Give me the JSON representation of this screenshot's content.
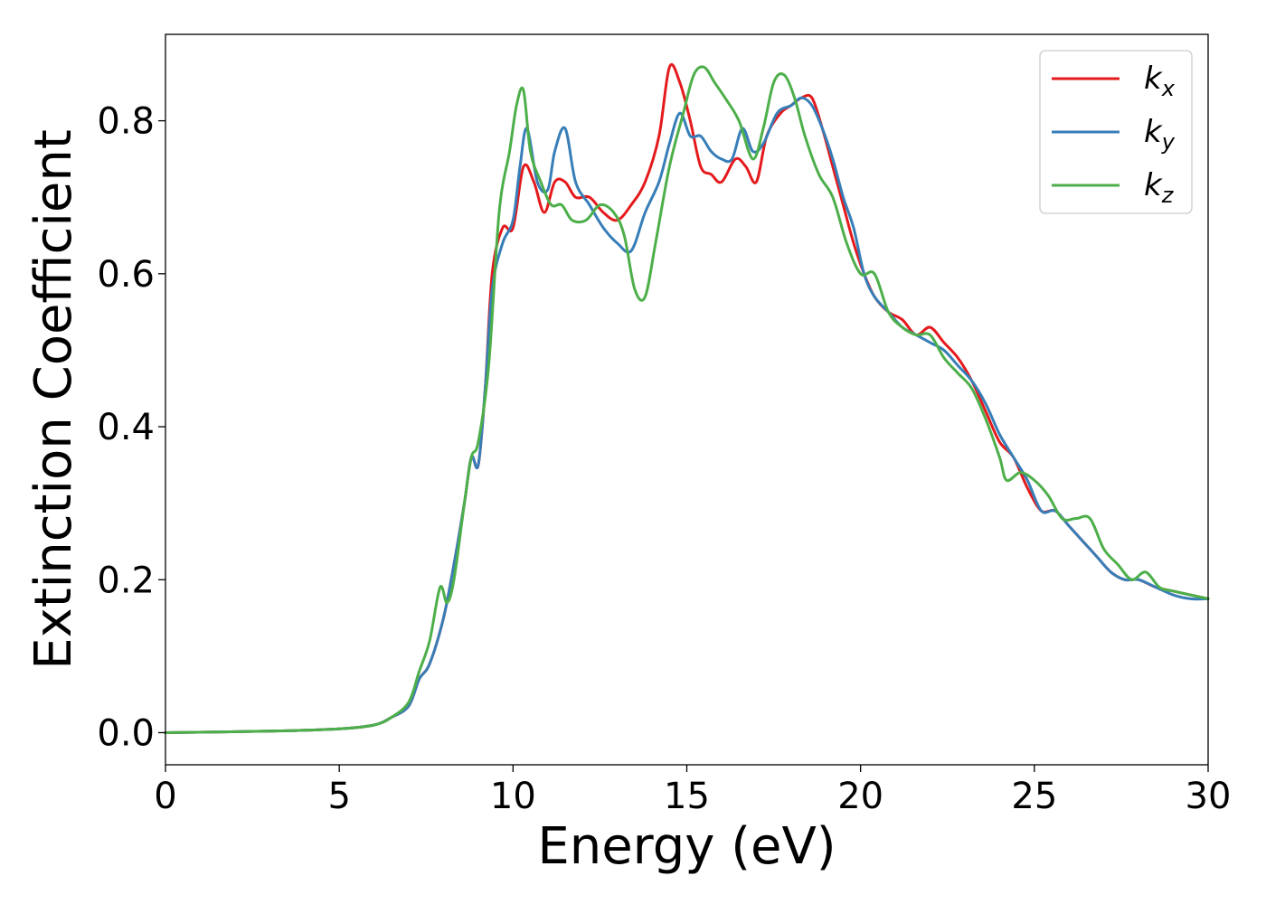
{
  "chart_data": {
    "type": "line",
    "title": "",
    "xlabel": "Energy (eV)",
    "ylabel": "Extinction Coefficient",
    "xlim": [
      0,
      30
    ],
    "ylim": [
      -0.042,
      0.913
    ],
    "xticks": [
      0,
      5,
      10,
      15,
      20,
      25,
      30
    ],
    "yticks": [
      0.0,
      0.2,
      0.4,
      0.6,
      0.8
    ],
    "xtick_labels": [
      "0",
      "5",
      "10",
      "15",
      "20",
      "25",
      "30"
    ],
    "ytick_labels": [
      "0.0",
      "0.2",
      "0.4",
      "0.6",
      "0.8"
    ],
    "grid": false,
    "legend_position": "top-right",
    "series": [
      {
        "name": "k_x",
        "label_base": "k",
        "label_sub": "x",
        "color": "#e41a1c",
        "x": [
          0,
          3,
          5,
          6,
          6.5,
          7,
          7.3,
          7.6,
          8.0,
          8.3,
          8.6,
          8.8,
          9.0,
          9.2,
          9.4,
          9.7,
          10.0,
          10.3,
          10.6,
          10.9,
          11.2,
          11.5,
          11.8,
          12.2,
          12.6,
          13.0,
          13.4,
          13.8,
          14.2,
          14.5,
          14.8,
          15.1,
          15.4,
          15.7,
          16.0,
          16.4,
          16.7,
          17.0,
          17.3,
          17.7,
          18.0,
          18.3,
          18.6,
          18.9,
          19.2,
          19.5,
          19.8,
          20.1,
          20.4,
          20.8,
          21.2,
          21.6,
          22.0,
          22.4,
          22.8,
          23.2,
          23.6,
          24.0,
          24.4,
          24.8,
          25.2,
          25.6,
          26.0,
          26.4,
          26.8,
          27.2,
          27.6,
          28.0,
          28.5,
          29.0,
          29.5,
          30.0
        ],
        "y": [
          0.0,
          0.002,
          0.005,
          0.01,
          0.02,
          0.035,
          0.07,
          0.09,
          0.15,
          0.22,
          0.3,
          0.36,
          0.35,
          0.45,
          0.6,
          0.66,
          0.66,
          0.74,
          0.72,
          0.68,
          0.72,
          0.72,
          0.7,
          0.7,
          0.68,
          0.67,
          0.69,
          0.72,
          0.78,
          0.87,
          0.85,
          0.8,
          0.74,
          0.73,
          0.72,
          0.75,
          0.74,
          0.72,
          0.78,
          0.81,
          0.82,
          0.83,
          0.83,
          0.79,
          0.74,
          0.69,
          0.64,
          0.6,
          0.57,
          0.55,
          0.54,
          0.52,
          0.53,
          0.51,
          0.49,
          0.46,
          0.42,
          0.38,
          0.36,
          0.32,
          0.29,
          0.29,
          0.27,
          0.25,
          0.23,
          0.21,
          0.2,
          0.2,
          0.19,
          0.185,
          0.18,
          0.175
        ]
      },
      {
        "name": "k_y",
        "label_base": "k",
        "label_sub": "y",
        "color": "#377eb8",
        "x": [
          0,
          3,
          5,
          6,
          6.5,
          7,
          7.3,
          7.6,
          8.0,
          8.3,
          8.6,
          8.8,
          9.0,
          9.2,
          9.4,
          9.7,
          10.0,
          10.2,
          10.4,
          10.7,
          11.0,
          11.2,
          11.5,
          11.8,
          12.2,
          12.6,
          13.0,
          13.4,
          13.8,
          14.2,
          14.5,
          14.8,
          15.1,
          15.4,
          15.7,
          16.0,
          16.3,
          16.6,
          16.9,
          17.2,
          17.6,
          18.0,
          18.3,
          18.6,
          18.9,
          19.2,
          19.5,
          19.8,
          20.1,
          20.4,
          20.8,
          21.2,
          21.6,
          22.0,
          22.4,
          22.8,
          23.2,
          23.6,
          24.0,
          24.4,
          24.8,
          25.2,
          25.6,
          26.0,
          26.4,
          26.8,
          27.2,
          27.6,
          28.0,
          28.5,
          29.0,
          29.5,
          30.0
        ],
        "y": [
          0.0,
          0.002,
          0.005,
          0.01,
          0.02,
          0.035,
          0.07,
          0.09,
          0.15,
          0.22,
          0.3,
          0.36,
          0.35,
          0.45,
          0.58,
          0.64,
          0.67,
          0.74,
          0.79,
          0.72,
          0.71,
          0.76,
          0.79,
          0.72,
          0.69,
          0.66,
          0.64,
          0.63,
          0.68,
          0.72,
          0.77,
          0.81,
          0.78,
          0.78,
          0.76,
          0.75,
          0.75,
          0.79,
          0.76,
          0.77,
          0.81,
          0.82,
          0.83,
          0.82,
          0.79,
          0.75,
          0.7,
          0.66,
          0.6,
          0.57,
          0.55,
          0.53,
          0.52,
          0.51,
          0.5,
          0.48,
          0.46,
          0.43,
          0.39,
          0.36,
          0.33,
          0.29,
          0.29,
          0.27,
          0.25,
          0.23,
          0.21,
          0.2,
          0.2,
          0.19,
          0.18,
          0.175,
          0.175
        ]
      },
      {
        "name": "k_z",
        "label_base": "k",
        "label_sub": "z",
        "color": "#4daf4a",
        "x": [
          0,
          3,
          5,
          6,
          6.5,
          7,
          7.3,
          7.6,
          7.9,
          8.1,
          8.3,
          8.6,
          8.8,
          9.0,
          9.3,
          9.6,
          9.9,
          10.1,
          10.3,
          10.5,
          10.8,
          11.1,
          11.4,
          11.7,
          12.1,
          12.5,
          12.9,
          13.2,
          13.5,
          13.8,
          14.1,
          14.5,
          14.9,
          15.2,
          15.5,
          15.8,
          16.1,
          16.5,
          16.9,
          17.2,
          17.5,
          17.8,
          18.1,
          18.4,
          18.8,
          19.2,
          19.6,
          20.0,
          20.4,
          20.8,
          21.2,
          21.6,
          22.0,
          22.4,
          22.8,
          23.2,
          23.6,
          24.0,
          24.2,
          24.6,
          25.0,
          25.4,
          25.8,
          26.2,
          26.6,
          27.0,
          27.4,
          27.8,
          28.2,
          28.6,
          29.0,
          29.5,
          30.0
        ],
        "y": [
          0.0,
          0.002,
          0.005,
          0.01,
          0.02,
          0.04,
          0.08,
          0.12,
          0.19,
          0.17,
          0.2,
          0.3,
          0.36,
          0.38,
          0.48,
          0.68,
          0.76,
          0.82,
          0.84,
          0.76,
          0.72,
          0.69,
          0.69,
          0.67,
          0.67,
          0.69,
          0.68,
          0.65,
          0.58,
          0.57,
          0.64,
          0.74,
          0.81,
          0.86,
          0.87,
          0.85,
          0.83,
          0.8,
          0.75,
          0.79,
          0.85,
          0.86,
          0.83,
          0.78,
          0.73,
          0.7,
          0.64,
          0.6,
          0.6,
          0.55,
          0.53,
          0.52,
          0.52,
          0.49,
          0.47,
          0.45,
          0.41,
          0.36,
          0.33,
          0.34,
          0.33,
          0.31,
          0.28,
          0.28,
          0.28,
          0.24,
          0.22,
          0.2,
          0.21,
          0.19,
          0.185,
          0.18,
          0.175
        ]
      }
    ]
  }
}
